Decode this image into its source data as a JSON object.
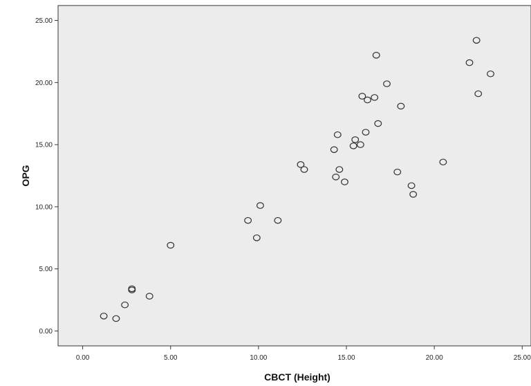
{
  "chart_data": {
    "type": "scatter",
    "title": "",
    "xlabel": "CBCT (Height)",
    "ylabel": "OPG",
    "xlim": [
      -1.4,
      25.5
    ],
    "ylim": [
      -1.2,
      26.2
    ],
    "xticks": [
      0,
      5,
      10,
      15,
      20,
      25
    ],
    "yticks": [
      0,
      5,
      10,
      15,
      20,
      25
    ],
    "xtick_labels": [
      "0.00",
      "5.00",
      "10.00",
      "15.00",
      "20.00",
      "25.00"
    ],
    "ytick_labels": [
      "0.00",
      "5.00",
      "10.00",
      "15.00",
      "20.00",
      "25.00"
    ],
    "grid": false,
    "legend": false,
    "colors": {
      "plot_background": "#ececec",
      "marker_stroke": "#333333",
      "axis": "#333333"
    },
    "series": [
      {
        "points": [
          {
            "x": 1.2,
            "y": 1.2
          },
          {
            "x": 1.9,
            "y": 1.0
          },
          {
            "x": 2.4,
            "y": 2.1
          },
          {
            "x": 2.8,
            "y": 3.3
          },
          {
            "x": 2.8,
            "y": 3.4
          },
          {
            "x": 3.8,
            "y": 2.8
          },
          {
            "x": 5.0,
            "y": 6.9
          },
          {
            "x": 9.4,
            "y": 8.9
          },
          {
            "x": 9.9,
            "y": 7.5
          },
          {
            "x": 10.1,
            "y": 10.1
          },
          {
            "x": 11.1,
            "y": 8.9
          },
          {
            "x": 12.4,
            "y": 13.4
          },
          {
            "x": 12.6,
            "y": 13.0
          },
          {
            "x": 14.3,
            "y": 14.6
          },
          {
            "x": 14.4,
            "y": 12.4
          },
          {
            "x": 14.5,
            "y": 15.8
          },
          {
            "x": 14.6,
            "y": 13.0
          },
          {
            "x": 14.9,
            "y": 12.0
          },
          {
            "x": 15.4,
            "y": 14.9
          },
          {
            "x": 15.5,
            "y": 15.4
          },
          {
            "x": 15.8,
            "y": 15.0
          },
          {
            "x": 15.9,
            "y": 18.9
          },
          {
            "x": 16.1,
            "y": 16.0
          },
          {
            "x": 16.2,
            "y": 18.6
          },
          {
            "x": 16.6,
            "y": 18.8
          },
          {
            "x": 16.7,
            "y": 22.2
          },
          {
            "x": 16.8,
            "y": 16.7
          },
          {
            "x": 17.3,
            "y": 19.9
          },
          {
            "x": 17.9,
            "y": 12.8
          },
          {
            "x": 18.1,
            "y": 18.1
          },
          {
            "x": 18.7,
            "y": 11.7
          },
          {
            "x": 18.8,
            "y": 11.0
          },
          {
            "x": 20.5,
            "y": 13.6
          },
          {
            "x": 22.0,
            "y": 21.6
          },
          {
            "x": 22.4,
            "y": 23.4
          },
          {
            "x": 22.5,
            "y": 19.1
          },
          {
            "x": 23.2,
            "y": 20.7
          }
        ]
      }
    ]
  }
}
